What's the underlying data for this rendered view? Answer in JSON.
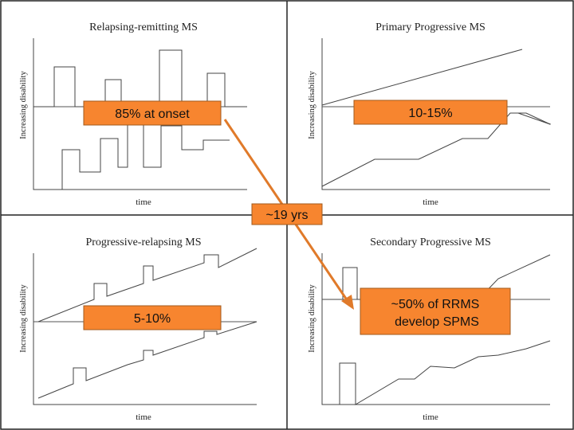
{
  "colors": {
    "callout_fill": "#f7852f",
    "arrow": "#e07a2a",
    "frame": "#222222",
    "trace": "#444444"
  },
  "panels": [
    {
      "title": "Relapsing-remitting MS",
      "xlabel": "time",
      "ylabel": "Increasing disability",
      "callout": "85% at onset"
    },
    {
      "title": "Primary Progressive MS",
      "xlabel": "time",
      "ylabel": "Increasing disability",
      "callout": "10-15%"
    },
    {
      "title": "Progressive-relapsing MS",
      "xlabel": "time",
      "ylabel": "Increasing disability",
      "callout": "5-10%"
    },
    {
      "title": "Secondary Progressive MS",
      "xlabel": "time",
      "ylabel": "Increasing disability",
      "callout": [
        "~50% of RRMS",
        "develop SPMS"
      ]
    }
  ],
  "arrow_label": "~19 yrs"
}
